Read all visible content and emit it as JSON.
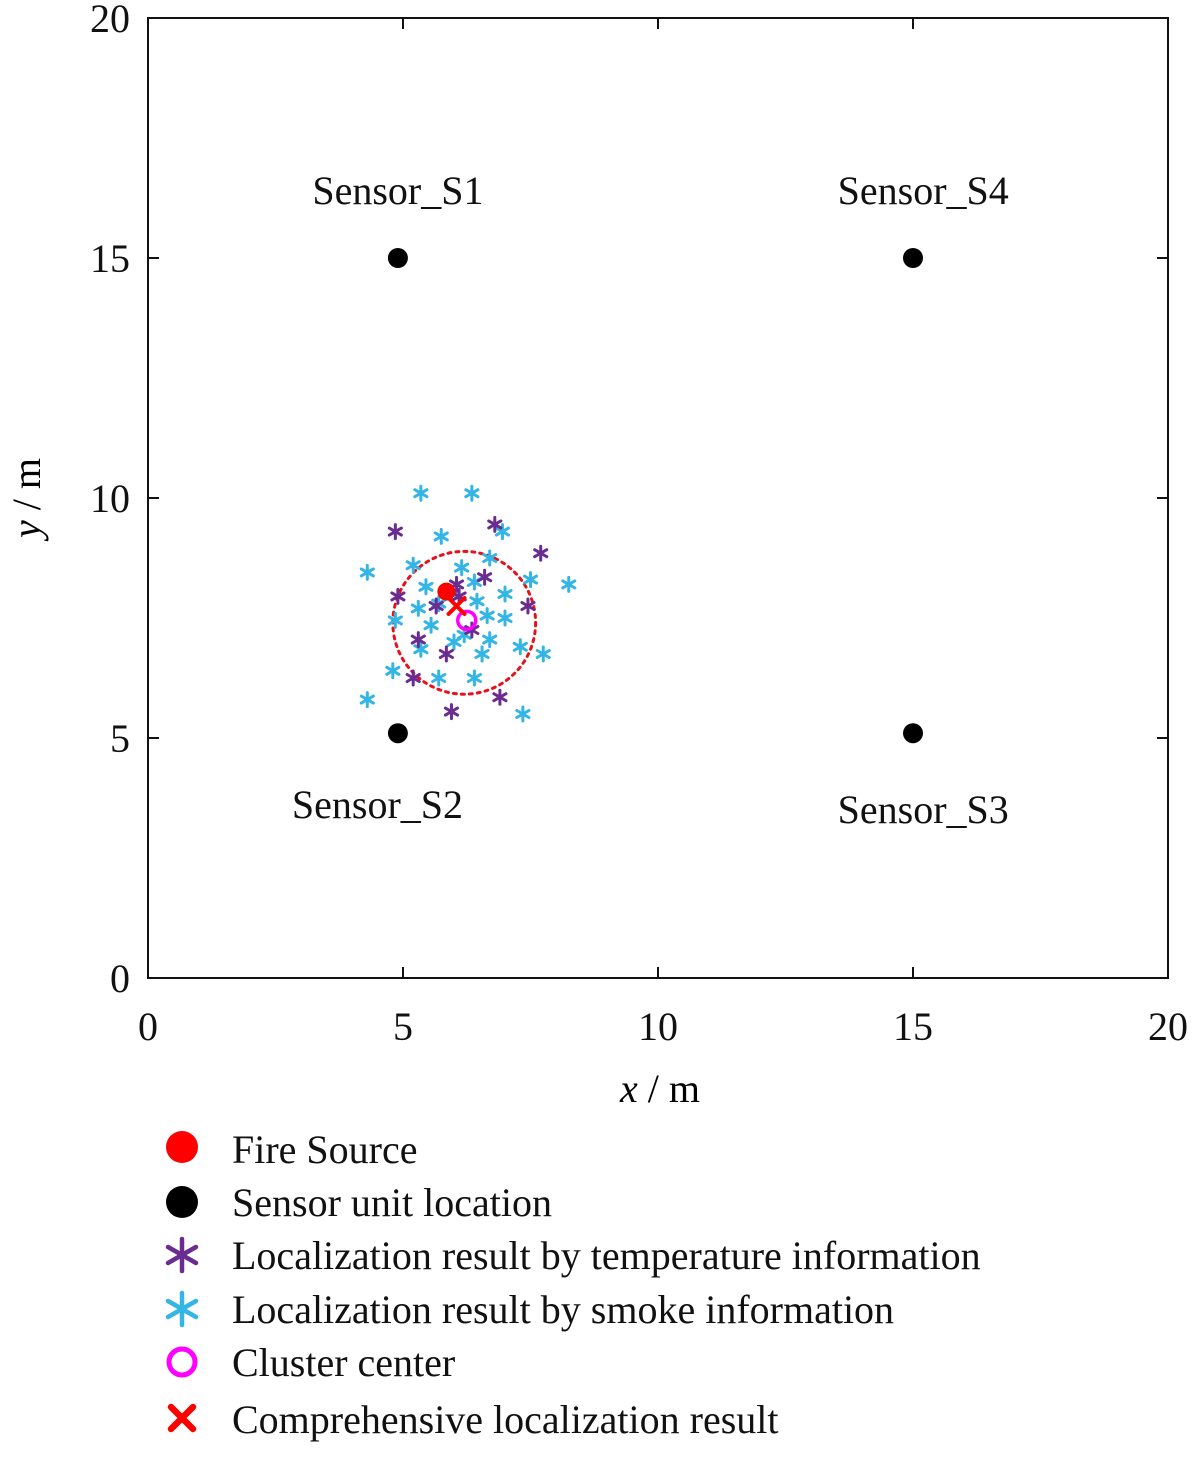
{
  "chart_data": {
    "type": "scatter",
    "xlabel_var": "x",
    "xlabel_unit": "m",
    "ylabel_var": "y",
    "ylabel_unit": "m",
    "xlim": [
      0,
      20
    ],
    "ylim": [
      0,
      20
    ],
    "xticks": [
      0,
      5,
      10,
      15,
      20
    ],
    "yticks": [
      0,
      5,
      10,
      15,
      20
    ],
    "grid": false,
    "legend_position": "below",
    "colors": {
      "fire": "#ff0000",
      "sensor": "#000000",
      "temperature": "#6a2c91",
      "smoke": "#33b5e5",
      "cluster": "#ff00ff",
      "comprehensive": "#ff0000",
      "circle": "#e8101a"
    },
    "annotations": [
      {
        "text": "Sensor_S1",
        "x": 4.9,
        "y": 16.4
      },
      {
        "text": "Sensor_S4",
        "x": 15.2,
        "y": 16.4
      },
      {
        "text": "Sensor_S2",
        "x": 4.5,
        "y": 3.6
      },
      {
        "text": "Sensor_S3",
        "x": 15.2,
        "y": 3.5
      }
    ],
    "dashed_circle": {
      "cx": 6.2,
      "cy": 7.4,
      "r": 1.4
    },
    "series": [
      {
        "name": "Fire Source",
        "marker": "filled-circle",
        "points": [
          [
            5.85,
            8.05
          ]
        ]
      },
      {
        "name": "Sensor unit location",
        "marker": "filled-circle",
        "points": [
          [
            4.9,
            15.0
          ],
          [
            15.0,
            15.0
          ],
          [
            4.9,
            5.1
          ],
          [
            15.0,
            5.1
          ]
        ]
      },
      {
        "name": "Localization result by temperature information",
        "marker": "asterisk",
        "points": [
          [
            4.85,
            9.3
          ],
          [
            6.8,
            9.45
          ],
          [
            7.7,
            8.85
          ],
          [
            4.9,
            7.95
          ],
          [
            6.05,
            8.2
          ],
          [
            6.6,
            8.35
          ],
          [
            5.65,
            7.75
          ],
          [
            7.45,
            7.75
          ],
          [
            5.3,
            7.05
          ],
          [
            6.35,
            7.25
          ],
          [
            5.85,
            6.75
          ],
          [
            5.2,
            6.25
          ],
          [
            6.9,
            5.85
          ],
          [
            5.95,
            5.55
          ],
          [
            6.1,
            7.95
          ]
        ]
      },
      {
        "name": "Localization result by smoke information",
        "marker": "asterisk",
        "points": [
          [
            5.35,
            10.1
          ],
          [
            6.35,
            10.1
          ],
          [
            6.95,
            9.3
          ],
          [
            5.75,
            9.2
          ],
          [
            4.3,
            8.45
          ],
          [
            5.2,
            8.6
          ],
          [
            6.15,
            8.55
          ],
          [
            6.7,
            8.75
          ],
          [
            7.5,
            8.3
          ],
          [
            8.25,
            8.2
          ],
          [
            5.45,
            8.15
          ],
          [
            5.95,
            8.0
          ],
          [
            6.4,
            8.25
          ],
          [
            7.0,
            8.0
          ],
          [
            5.3,
            7.7
          ],
          [
            6.45,
            7.85
          ],
          [
            6.65,
            7.55
          ],
          [
            7.0,
            7.5
          ],
          [
            4.85,
            7.45
          ],
          [
            5.55,
            7.35
          ],
          [
            6.2,
            7.15
          ],
          [
            6.7,
            7.05
          ],
          [
            7.3,
            6.9
          ],
          [
            5.35,
            6.85
          ],
          [
            6.0,
            7.0
          ],
          [
            6.55,
            6.75
          ],
          [
            7.75,
            6.75
          ],
          [
            4.8,
            6.4
          ],
          [
            5.7,
            6.25
          ],
          [
            6.4,
            6.25
          ],
          [
            4.3,
            5.8
          ],
          [
            7.35,
            5.5
          ],
          [
            5.7,
            7.8
          ]
        ]
      },
      {
        "name": "Cluster center",
        "marker": "open-circle",
        "points": [
          [
            6.25,
            7.45
          ]
        ]
      },
      {
        "name": "Comprehensive localization result",
        "marker": "x",
        "points": [
          [
            6.05,
            7.75
          ]
        ]
      }
    ]
  }
}
